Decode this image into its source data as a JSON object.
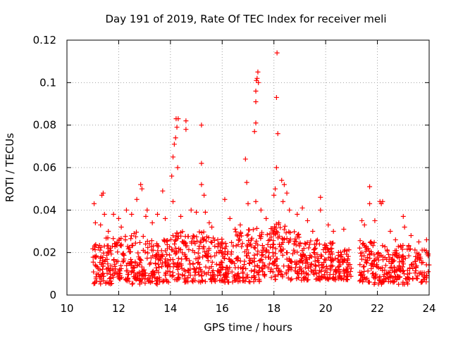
{
  "chart_data": {
    "type": "scatter",
    "title": "Day 191 of 2019, Rate Of TEC Index for receiver meli",
    "xlabel": "GPS time / hours",
    "ylabel": "ROTI / TECUs",
    "xlim": [
      10,
      24
    ],
    "ylim": [
      0,
      0.12
    ],
    "xticks": [
      10,
      12,
      14,
      16,
      18,
      20,
      22,
      24
    ],
    "yticks": [
      0,
      0.02,
      0.04,
      0.06,
      0.08,
      0.1,
      0.12
    ],
    "xtick_labels": [
      "10",
      "12",
      "14",
      "16",
      "18",
      "20",
      "22",
      "24"
    ],
    "ytick_labels": [
      "0",
      "0.02",
      "0.04",
      "0.06",
      "0.08",
      "0.1",
      "0.12"
    ],
    "grid": true,
    "marker": "+",
    "color": "#ff0000",
    "series": [
      {
        "name": "ROTI",
        "points": [
          [
            11.05,
            0.043
          ],
          [
            11.1,
            0.034
          ],
          [
            11.35,
            0.047
          ],
          [
            11.4,
            0.048
          ],
          [
            11.45,
            0.038
          ],
          [
            11.3,
            0.033
          ],
          [
            11.6,
            0.03
          ],
          [
            11.8,
            0.038
          ],
          [
            12.0,
            0.036
          ],
          [
            12.1,
            0.032
          ],
          [
            12.3,
            0.04
          ],
          [
            12.5,
            0.038
          ],
          [
            12.7,
            0.045
          ],
          [
            12.85,
            0.052
          ],
          [
            12.9,
            0.05
          ],
          [
            13.05,
            0.037
          ],
          [
            13.1,
            0.04
          ],
          [
            13.3,
            0.034
          ],
          [
            13.5,
            0.038
          ],
          [
            13.7,
            0.049
          ],
          [
            13.8,
            0.036
          ],
          [
            14.05,
            0.056
          ],
          [
            14.1,
            0.065
          ],
          [
            14.15,
            0.071
          ],
          [
            14.2,
            0.074
          ],
          [
            14.22,
            0.083
          ],
          [
            14.25,
            0.079
          ],
          [
            14.3,
            0.083
          ],
          [
            14.28,
            0.06
          ],
          [
            14.1,
            0.044
          ],
          [
            14.6,
            0.082
          ],
          [
            14.6,
            0.078
          ],
          [
            14.4,
            0.037
          ],
          [
            14.8,
            0.04
          ],
          [
            15.0,
            0.039
          ],
          [
            15.2,
            0.08
          ],
          [
            15.2,
            0.062
          ],
          [
            15.2,
            0.052
          ],
          [
            15.3,
            0.047
          ],
          [
            15.35,
            0.039
          ],
          [
            15.5,
            0.034
          ],
          [
            15.6,
            0.032
          ],
          [
            16.1,
            0.045
          ],
          [
            16.3,
            0.036
          ],
          [
            16.5,
            0.031
          ],
          [
            16.7,
            0.033
          ],
          [
            16.9,
            0.064
          ],
          [
            16.95,
            0.053
          ],
          [
            17.0,
            0.043
          ],
          [
            17.25,
            0.077
          ],
          [
            17.3,
            0.081
          ],
          [
            17.3,
            0.091
          ],
          [
            17.3,
            0.096
          ],
          [
            17.32,
            0.101
          ],
          [
            17.35,
            0.102
          ],
          [
            17.38,
            0.105
          ],
          [
            17.4,
            0.1
          ],
          [
            17.3,
            0.044
          ],
          [
            17.5,
            0.04
          ],
          [
            17.7,
            0.036
          ],
          [
            18.0,
            0.047
          ],
          [
            18.05,
            0.05
          ],
          [
            18.1,
            0.06
          ],
          [
            18.15,
            0.076
          ],
          [
            18.1,
            0.093
          ],
          [
            18.12,
            0.114
          ],
          [
            18.3,
            0.054
          ],
          [
            18.4,
            0.052
          ],
          [
            18.5,
            0.048
          ],
          [
            18.35,
            0.044
          ],
          [
            18.6,
            0.04
          ],
          [
            18.9,
            0.038
          ],
          [
            19.1,
            0.041
          ],
          [
            19.3,
            0.035
          ],
          [
            19.5,
            0.03
          ],
          [
            19.8,
            0.046
          ],
          [
            19.8,
            0.04
          ],
          [
            20.1,
            0.033
          ],
          [
            20.3,
            0.03
          ],
          [
            20.7,
            0.031
          ],
          [
            21.4,
            0.035
          ],
          [
            21.5,
            0.033
          ],
          [
            21.7,
            0.051
          ],
          [
            21.7,
            0.043
          ],
          [
            21.9,
            0.035
          ],
          [
            22.1,
            0.044
          ],
          [
            22.15,
            0.043
          ],
          [
            22.2,
            0.044
          ],
          [
            22.5,
            0.03
          ],
          [
            22.7,
            0.026
          ],
          [
            23.0,
            0.037
          ],
          [
            23.05,
            0.032
          ],
          [
            23.3,
            0.028
          ],
          [
            23.6,
            0.025
          ],
          [
            23.9,
            0.026
          ]
        ],
        "band": {
          "intervals": [
            [
              11.0,
              11.5,
              0.005,
              0.024
            ],
            [
              11.5,
              12.0,
              0.005,
              0.027
            ],
            [
              12.0,
              12.5,
              0.006,
              0.028
            ],
            [
              12.5,
              13.0,
              0.005,
              0.03
            ],
            [
              13.0,
              13.5,
              0.005,
              0.026
            ],
            [
              13.5,
              14.0,
              0.006,
              0.026
            ],
            [
              14.0,
              14.5,
              0.007,
              0.03
            ],
            [
              14.5,
              15.0,
              0.006,
              0.028
            ],
            [
              15.0,
              15.5,
              0.006,
              0.03
            ],
            [
              15.5,
              16.0,
              0.006,
              0.027
            ],
            [
              16.0,
              16.5,
              0.006,
              0.025
            ],
            [
              16.5,
              17.0,
              0.006,
              0.03
            ],
            [
              17.0,
              17.5,
              0.006,
              0.033
            ],
            [
              17.5,
              18.0,
              0.007,
              0.032
            ],
            [
              18.0,
              18.5,
              0.007,
              0.035
            ],
            [
              18.5,
              19.0,
              0.007,
              0.03
            ],
            [
              19.0,
              19.5,
              0.007,
              0.026
            ],
            [
              19.5,
              20.0,
              0.007,
              0.026
            ],
            [
              20.0,
              20.5,
              0.007,
              0.025
            ],
            [
              20.5,
              21.0,
              0.007,
              0.022
            ],
            [
              21.3,
              21.8,
              0.006,
              0.026
            ],
            [
              21.8,
              22.3,
              0.005,
              0.025
            ],
            [
              22.3,
              22.8,
              0.006,
              0.022
            ],
            [
              22.8,
              23.3,
              0.005,
              0.024
            ],
            [
              23.3,
              24.0,
              0.006,
              0.022
            ]
          ],
          "count_per_interval": 55
        }
      }
    ]
  }
}
